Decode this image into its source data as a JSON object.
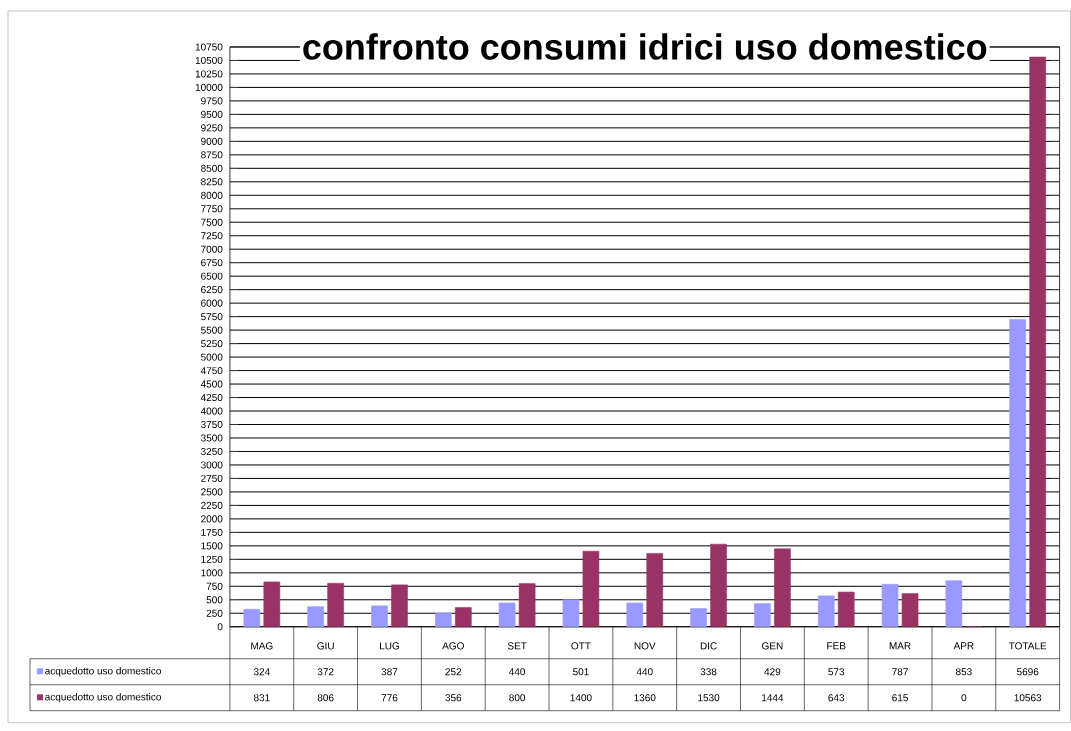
{
  "chart_data": {
    "type": "bar",
    "title": "confronto consumi idrici uso domestico",
    "categories": [
      "MAG",
      "GIU",
      "LUG",
      "AGO",
      "SET",
      "OTT",
      "NOV",
      "DIC",
      "GEN",
      "FEB",
      "MAR",
      "APR",
      "TOTALE"
    ],
    "series": [
      {
        "name": "acquedotto uso domestico",
        "color": "#9999ff",
        "values": [
          324,
          372,
          387,
          252,
          440,
          501,
          440,
          338,
          429,
          573,
          787,
          853,
          5696
        ]
      },
      {
        "name": "acquedotto uso domestico",
        "color": "#993366",
        "values": [
          831,
          806,
          776,
          356,
          800,
          1400,
          1360,
          1530,
          1444,
          643,
          615,
          0,
          10563
        ]
      }
    ],
    "ylim": [
      0,
      10750
    ],
    "yticks": [
      0,
      250,
      500,
      750,
      1000,
      1250,
      1500,
      1750,
      2000,
      2250,
      2500,
      2750,
      3000,
      3250,
      3500,
      3750,
      4000,
      4250,
      4500,
      4750,
      5000,
      5250,
      5500,
      5750,
      6000,
      6250,
      6500,
      6750,
      7000,
      7250,
      7500,
      7750,
      8000,
      8250,
      8500,
      8750,
      9000,
      9250,
      9500,
      9750,
      10000,
      10250,
      10500,
      10750
    ],
    "grid": "y",
    "legend": "bottom",
    "data_labels": true
  }
}
